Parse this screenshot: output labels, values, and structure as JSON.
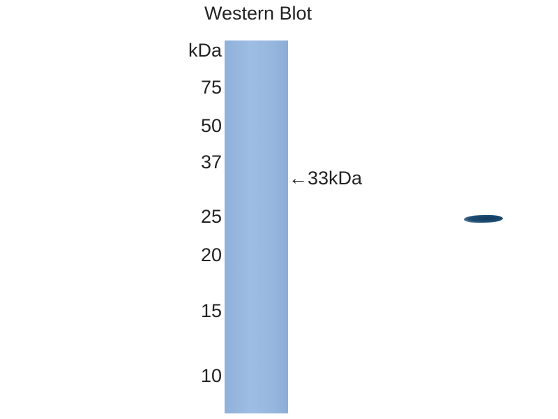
{
  "title": "Western Blot",
  "unit_label": "kDa",
  "markers": [
    "75",
    "50",
    "37",
    "25",
    "20",
    "15",
    "10"
  ],
  "band_annotation": {
    "arrow": "←",
    "label": "33kDa"
  },
  "colors": {
    "membrane": "#98b8df",
    "band": "#1a4468",
    "text": "#222222"
  }
}
